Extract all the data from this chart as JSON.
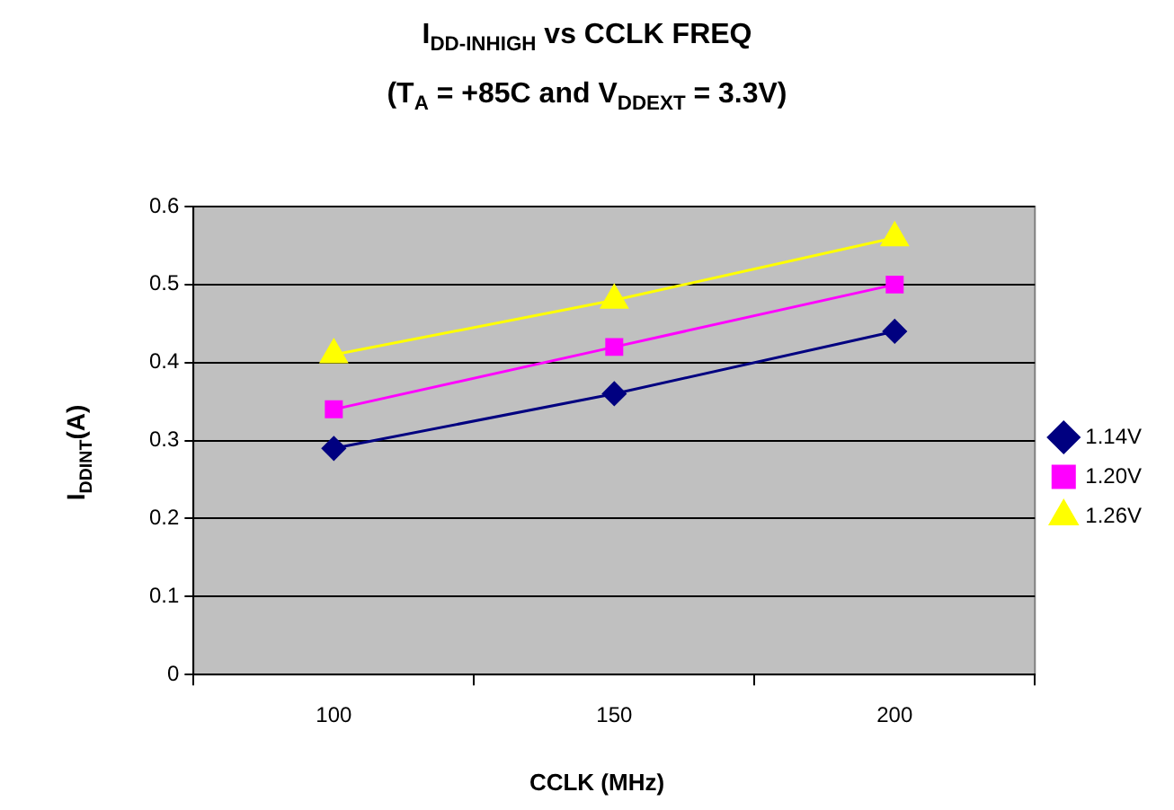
{
  "chart_data": {
    "type": "line",
    "title": "I$_{DD-INHIGH}$ vs CCLK FREQ",
    "subtitle": "(T$_{A}$ = +85C and V$_{DDEXT}$ = 3.3V)",
    "xlabel": "CCLK (MHz)",
    "ylabel": "I$_{DDINT}$(A)",
    "categories": [
      "100",
      "150",
      "200"
    ],
    "series": [
      {
        "name": "1.14V",
        "color": "#000080",
        "marker": "diamond",
        "values": [
          0.29,
          0.36,
          0.44
        ]
      },
      {
        "name": "1.20V",
        "color": "#ff00ff",
        "marker": "square",
        "values": [
          0.34,
          0.42,
          0.5
        ]
      },
      {
        "name": "1.26V",
        "color": "#ffff00",
        "marker": "triangle",
        "values": [
          0.41,
          0.48,
          0.56
        ]
      }
    ],
    "ylim": [
      0,
      0.6
    ],
    "yticks": [
      0,
      0.1,
      0.2,
      0.3,
      0.4,
      0.5,
      0.6
    ],
    "grid": "y",
    "legend": "right",
    "line_style": "solid"
  }
}
